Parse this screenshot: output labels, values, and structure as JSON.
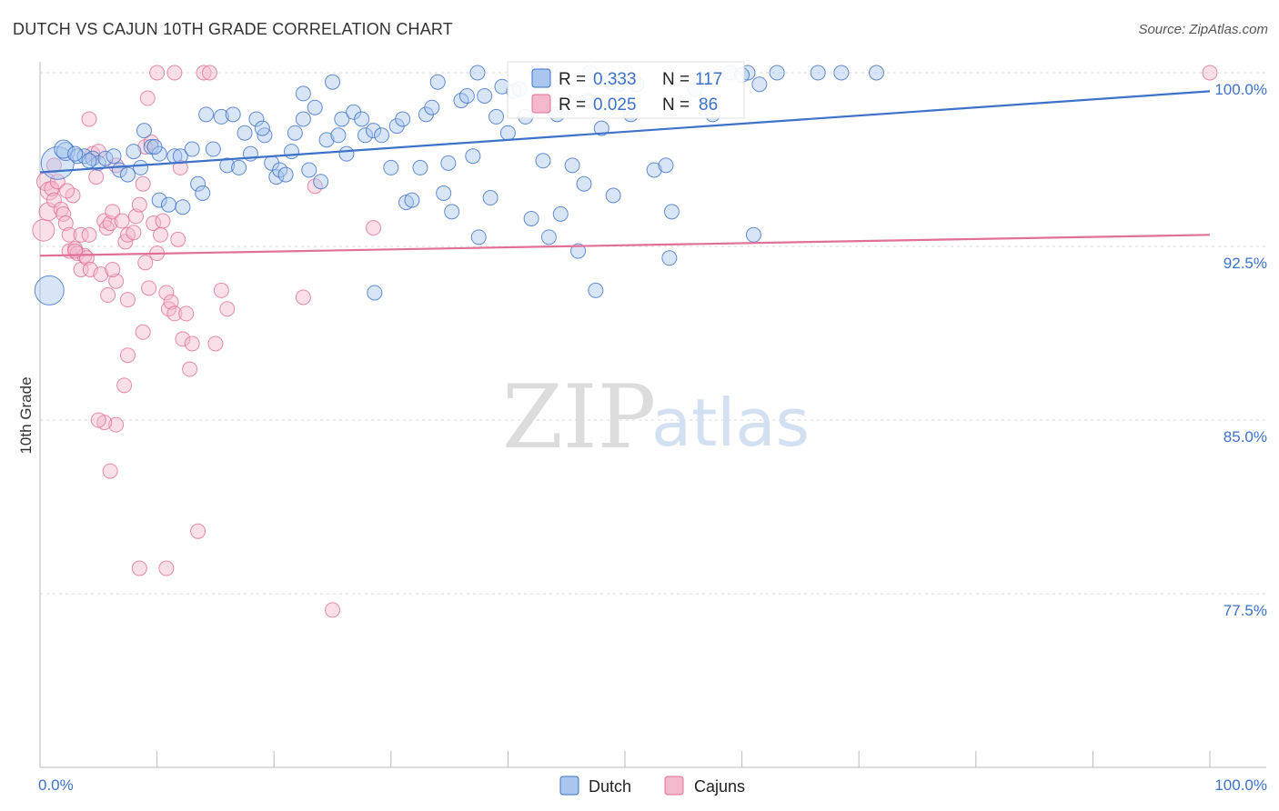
{
  "header": {
    "title": "DUTCH VS CAJUN 10TH GRADE CORRELATION CHART",
    "source": "Source: ZipAtlas.com"
  },
  "watermark": {
    "zip": "ZIP",
    "atlas": "atlas"
  },
  "chart_data": {
    "type": "scatter",
    "title": "DUTCH VS CAJUN 10TH GRADE CORRELATION CHART",
    "xlabel": "",
    "ylabel": "10th Grade",
    "xlim": [
      0,
      100
    ],
    "ylim": [
      70,
      101.5
    ],
    "x_tick_labels": [
      "0.0%",
      "100.0%"
    ],
    "y_ticks": [
      {
        "value": 100,
        "label": "100.0%"
      },
      {
        "value": 92.5,
        "label": "92.5%"
      },
      {
        "value": 85,
        "label": "85.0%"
      },
      {
        "value": 77.5,
        "label": "77.5%"
      }
    ],
    "grid": true,
    "legend_placement": "top-center",
    "colors": {
      "dutch": "#3d72c8",
      "cajuns": "#e07098",
      "dutch_fill": "#a8c6ee",
      "cajuns_fill": "#f4b8cc"
    },
    "series": [
      {
        "name": "Dutch",
        "r_label": "R =",
        "r": "0.333",
        "n_label": "N =",
        "n": "117",
        "trend": [
          [
            0,
            95.7
          ],
          [
            100,
            99.2
          ]
        ],
        "points": [
          [
            1.5,
            96.1,
            18
          ],
          [
            2.2,
            96.6,
            10
          ],
          [
            3.2,
            96.4,
            8
          ],
          [
            3.8,
            96.4,
            8
          ],
          [
            4.5,
            96.3,
            8
          ],
          [
            5,
            96.1,
            8
          ],
          [
            5.6,
            96.3,
            8
          ],
          [
            6.3,
            96.4,
            8
          ],
          [
            6.8,
            95.8,
            8
          ],
          [
            7.5,
            95.6,
            8
          ],
          [
            8,
            96.6,
            8
          ],
          [
            8.6,
            95.9,
            8
          ],
          [
            8.9,
            97.5,
            8
          ],
          [
            9.5,
            96.8,
            8
          ],
          [
            10.2,
            96.5,
            8
          ],
          [
            10.2,
            94.5,
            8
          ],
          [
            11,
            94.3,
            8
          ],
          [
            11.5,
            96.4,
            8
          ],
          [
            12,
            96.4,
            8
          ],
          [
            12.2,
            94.2,
            8
          ],
          [
            13,
            96.7,
            8
          ],
          [
            13.5,
            95.2,
            8
          ],
          [
            13.9,
            94.8,
            8
          ],
          [
            14.2,
            98.2,
            8
          ],
          [
            14.8,
            96.7,
            8
          ],
          [
            15.5,
            98.1,
            8
          ],
          [
            16,
            96,
            8
          ],
          [
            16.5,
            98.2,
            8
          ],
          [
            17,
            95.9,
            8
          ],
          [
            17.5,
            97.4,
            8
          ],
          [
            18,
            96.5,
            8
          ],
          [
            18.5,
            98,
            8
          ],
          [
            19.2,
            97.3,
            8
          ],
          [
            19.8,
            96.1,
            8
          ],
          [
            20.2,
            95.5,
            8
          ],
          [
            20.5,
            95.8,
            8
          ],
          [
            21,
            95.6,
            8
          ],
          [
            21.5,
            96.6,
            8
          ],
          [
            21.8,
            97.4,
            8
          ],
          [
            22.5,
            98,
            8
          ],
          [
            23,
            95.8,
            8
          ],
          [
            23.5,
            98.5,
            8
          ],
          [
            24,
            95.3,
            8
          ],
          [
            24.5,
            97.1,
            8
          ],
          [
            25,
            99.6,
            8
          ],
          [
            25.5,
            97.3,
            8
          ],
          [
            25.8,
            98,
            8
          ],
          [
            26.2,
            96.5,
            8
          ],
          [
            26.8,
            98.3,
            8
          ],
          [
            27.5,
            98,
            8
          ],
          [
            27.8,
            97.3,
            8
          ],
          [
            28.5,
            97.5,
            8
          ],
          [
            29.2,
            97.3,
            8
          ],
          [
            30,
            95.9,
            8
          ],
          [
            30.5,
            97.7,
            8
          ],
          [
            31,
            98,
            8
          ],
          [
            31.3,
            94.4,
            8
          ],
          [
            31.8,
            94.5,
            8
          ],
          [
            32.5,
            95.9,
            8
          ],
          [
            33,
            98.2,
            8
          ],
          [
            33.5,
            98.5,
            8
          ],
          [
            34,
            99.6,
            8
          ],
          [
            34.5,
            94.8,
            8
          ],
          [
            34.9,
            96.1,
            8
          ],
          [
            35.2,
            94,
            8
          ],
          [
            36,
            98.8,
            8
          ],
          [
            36.5,
            99,
            8
          ],
          [
            37,
            96.4,
            8
          ],
          [
            37.4,
            100,
            8
          ],
          [
            38,
            99,
            8
          ],
          [
            38.5,
            94.6,
            8
          ],
          [
            39,
            98.1,
            8
          ],
          [
            39.5,
            99.4,
            8
          ],
          [
            40,
            97.4,
            8
          ],
          [
            40.5,
            99.2,
            8
          ],
          [
            41.5,
            98.1,
            8
          ],
          [
            42,
            93.7,
            8
          ],
          [
            42.5,
            100,
            8
          ],
          [
            43,
            96.2,
            8
          ],
          [
            43.5,
            92.9,
            8
          ],
          [
            44.2,
            98.2,
            8
          ],
          [
            44.5,
            93.9,
            8
          ],
          [
            45.5,
            96,
            8
          ],
          [
            46,
            92.3,
            8
          ],
          [
            46.5,
            95.2,
            8
          ],
          [
            47,
            100,
            8
          ],
          [
            47.5,
            90.6,
            8
          ],
          [
            48,
            97.6,
            8
          ],
          [
            48.8,
            99.6,
            8
          ],
          [
            49,
            94.7,
            8
          ],
          [
            49.5,
            99.5,
            8
          ],
          [
            50.5,
            98.2,
            8
          ],
          [
            51,
            99.5,
            8
          ],
          [
            52.5,
            95.8,
            8
          ],
          [
            53.5,
            96,
            8
          ],
          [
            53.8,
            92,
            8
          ],
          [
            54,
            94,
            8
          ],
          [
            56,
            99.3,
            8
          ],
          [
            57.5,
            98.2,
            8
          ],
          [
            59,
            100,
            8
          ],
          [
            60.5,
            100,
            8
          ],
          [
            61,
            93,
            8
          ],
          [
            63,
            100,
            8
          ],
          [
            66.5,
            100,
            8
          ],
          [
            68.5,
            100,
            8
          ],
          [
            71.5,
            100,
            8
          ],
          [
            0.8,
            90.6,
            16
          ],
          [
            2,
            96.7,
            10
          ],
          [
            3,
            96.5,
            8
          ],
          [
            4.2,
            96.2,
            8
          ],
          [
            37.5,
            92.9,
            8
          ],
          [
            22.5,
            99.1,
            8
          ],
          [
            61.5,
            99.5,
            8
          ],
          [
            28.6,
            90.5,
            8
          ],
          [
            60,
            99.9,
            8
          ],
          [
            9.8,
            96.8,
            8
          ],
          [
            46.8,
            98.8,
            8
          ],
          [
            19,
            97.6,
            8
          ],
          [
            41,
            99.3,
            8
          ]
        ]
      },
      {
        "name": "Cajuns",
        "r_label": "R =",
        "r": "0.025",
        "n_label": "N =",
        "n": "86",
        "trend": [
          [
            0,
            92.1
          ],
          [
            100,
            93
          ]
        ],
        "points": [
          [
            0.3,
            93.2,
            12
          ],
          [
            0.5,
            95.3,
            10
          ],
          [
            0.7,
            94,
            10
          ],
          [
            0.8,
            94.9,
            10
          ],
          [
            1,
            95,
            8
          ],
          [
            1.2,
            94.5,
            8
          ],
          [
            1.5,
            95.3,
            8
          ],
          [
            1.8,
            94.1,
            8
          ],
          [
            2,
            93.9,
            8
          ],
          [
            2.2,
            93.5,
            8
          ],
          [
            2.5,
            93,
            8
          ],
          [
            2.5,
            92.3,
            8
          ],
          [
            2.8,
            94.7,
            8
          ],
          [
            3,
            92.4,
            8
          ],
          [
            3.2,
            92.2,
            8
          ],
          [
            3.5,
            93,
            8
          ],
          [
            3.8,
            92.1,
            8
          ],
          [
            3.5,
            91.5,
            8
          ],
          [
            4,
            92,
            8
          ],
          [
            4.2,
            93,
            8
          ],
          [
            4.3,
            91.5,
            8
          ],
          [
            4.8,
            95.5,
            8
          ],
          [
            4.2,
            98,
            8
          ],
          [
            4.5,
            96.5,
            8
          ],
          [
            5,
            96.6,
            8
          ],
          [
            5.2,
            91.3,
            8
          ],
          [
            5.5,
            93.6,
            8
          ],
          [
            5.7,
            93.3,
            8
          ],
          [
            6,
            93.5,
            8
          ],
          [
            6.2,
            94,
            8
          ],
          [
            6.5,
            96,
            8
          ],
          [
            6.5,
            91,
            8
          ],
          [
            7,
            93.6,
            8
          ],
          [
            7.3,
            92.7,
            8
          ],
          [
            7.5,
            93,
            8
          ],
          [
            8,
            93.1,
            8
          ],
          [
            8.2,
            93.8,
            8
          ],
          [
            8.5,
            94.3,
            8
          ],
          [
            8.8,
            95.2,
            8
          ],
          [
            9,
            96.8,
            8
          ],
          [
            9.2,
            98.9,
            8
          ],
          [
            9.5,
            97,
            8
          ],
          [
            9.7,
            93.5,
            8
          ],
          [
            10,
            92.2,
            8
          ],
          [
            10.3,
            93,
            8
          ],
          [
            10.5,
            93.6,
            8
          ],
          [
            10.8,
            90.5,
            8
          ],
          [
            11,
            89.8,
            8
          ],
          [
            11.2,
            90.1,
            8
          ],
          [
            11.5,
            89.6,
            8
          ],
          [
            11.8,
            92.8,
            8
          ],
          [
            12,
            95.9,
            8
          ],
          [
            12.2,
            88.5,
            8
          ],
          [
            12.5,
            89.6,
            8
          ],
          [
            12.8,
            87.2,
            8
          ],
          [
            13,
            88.3,
            8
          ],
          [
            13.5,
            80.2,
            8
          ],
          [
            14,
            100,
            8
          ],
          [
            14.5,
            100,
            8
          ],
          [
            15,
            88.3,
            8
          ],
          [
            15.5,
            90.6,
            8
          ],
          [
            16,
            89.8,
            8
          ],
          [
            10,
            100,
            8
          ],
          [
            11.5,
            100,
            8
          ],
          [
            9.3,
            90.7,
            8
          ],
          [
            8.8,
            88.8,
            8
          ],
          [
            7.5,
            87.8,
            8
          ],
          [
            7.2,
            86.5,
            8
          ],
          [
            6.5,
            84.8,
            8
          ],
          [
            5.5,
            84.9,
            8
          ],
          [
            5,
            85,
            8
          ],
          [
            6,
            82.8,
            8
          ],
          [
            8.5,
            78.6,
            8
          ],
          [
            10.8,
            78.6,
            8
          ],
          [
            22.5,
            90.3,
            8
          ],
          [
            23.5,
            95.1,
            8
          ],
          [
            25,
            76.8,
            8
          ],
          [
            28.5,
            93.3,
            8
          ],
          [
            5.8,
            90.4,
            8
          ],
          [
            6.2,
            91.5,
            8
          ],
          [
            7.5,
            90.2,
            8
          ],
          [
            9,
            91.8,
            8
          ],
          [
            3,
            92.3,
            8
          ],
          [
            2.3,
            94.9,
            8
          ],
          [
            1.2,
            96,
            8
          ],
          [
            100,
            100,
            8
          ]
        ]
      }
    ]
  },
  "legend": {
    "dutch_label": "Dutch",
    "cajuns_label": "Cajuns"
  }
}
